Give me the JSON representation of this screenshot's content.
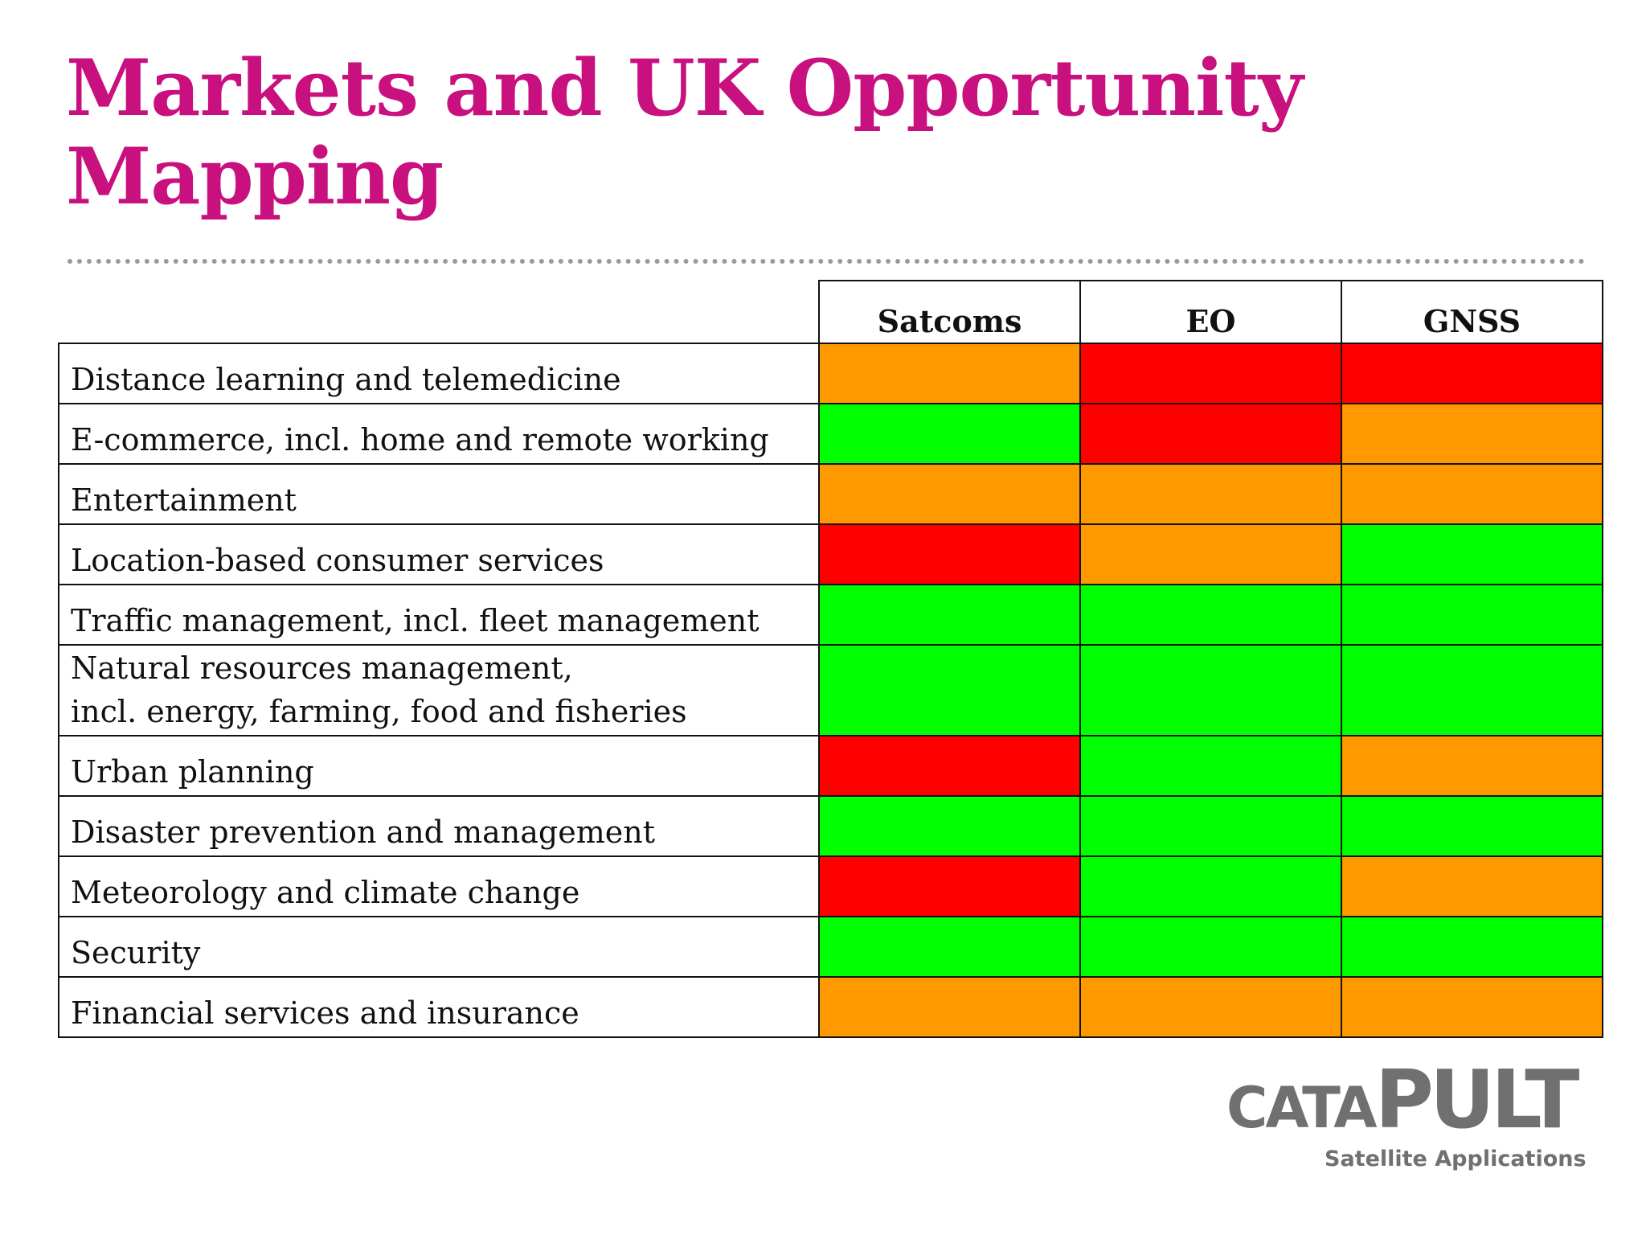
{
  "title": "Markets and UK Opportunity Mapping",
  "matrix": {
    "columns": [
      "Satcoms",
      "EO",
      "GNSS"
    ],
    "rows": [
      {
        "label": "Distance learning and telemedicine",
        "ratings": [
          "orange",
          "red",
          "red"
        ]
      },
      {
        "label": "E-commerce, incl. home and remote working",
        "ratings": [
          "green",
          "red",
          "orange"
        ]
      },
      {
        "label": "Entertainment",
        "ratings": [
          "orange",
          "orange",
          "orange"
        ]
      },
      {
        "label": "Location-based consumer services",
        "ratings": [
          "red",
          "orange",
          "green"
        ]
      },
      {
        "label": "Traffic management, incl. fleet management",
        "ratings": [
          "green",
          "green",
          "green"
        ]
      },
      {
        "label": "Natural resources management,\nincl. energy, farming, food and fisheries",
        "ratings": [
          "green",
          "green",
          "green"
        ]
      },
      {
        "label": "Urban planning",
        "ratings": [
          "red",
          "green",
          "orange"
        ]
      },
      {
        "label": "Disaster prevention and management",
        "ratings": [
          "green",
          "green",
          "green"
        ]
      },
      {
        "label": "Meteorology and climate change",
        "ratings": [
          "red",
          "green",
          "orange"
        ]
      },
      {
        "label": "Security",
        "ratings": [
          "green",
          "green",
          "green"
        ]
      },
      {
        "label": "Financial services and insurance",
        "ratings": [
          "orange",
          "orange",
          "orange"
        ]
      }
    ]
  },
  "colors": {
    "title": "#c8107f",
    "green": "#00ff00",
    "orange": "#ff9900",
    "red": "#ff0000"
  },
  "logo": {
    "word_small": "CATA",
    "word_big": "PULT",
    "subtitle": "Satellite Applications"
  }
}
